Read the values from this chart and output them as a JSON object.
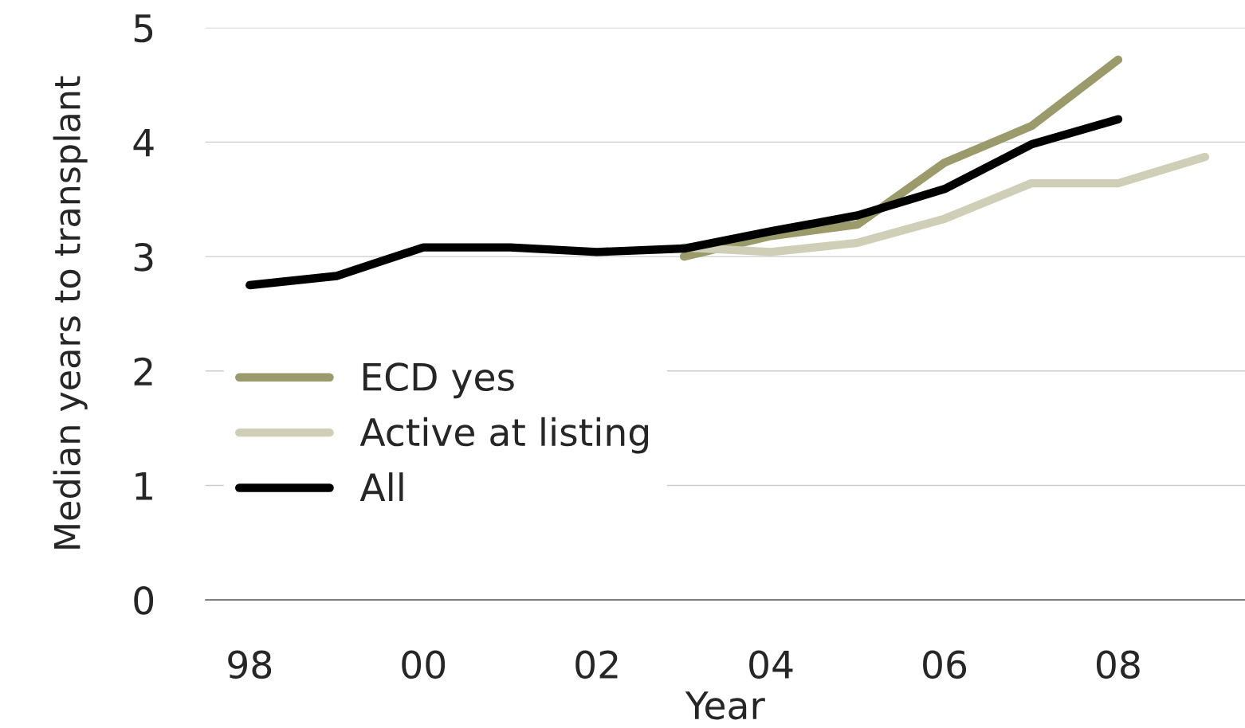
{
  "chart_data": {
    "type": "line",
    "xlabel": "Year",
    "ylabel": "Median years to transplant",
    "x": [
      1998,
      1999,
      2000,
      2001,
      2002,
      2003,
      2004,
      2005,
      2006,
      2007,
      2008,
      2009
    ],
    "series": [
      {
        "name": "ECD yes",
        "color": "#9a9a6a",
        "values": [
          null,
          null,
          null,
          null,
          null,
          3.0,
          3.18,
          3.28,
          3.82,
          4.14,
          4.72,
          null
        ]
      },
      {
        "name": "Active at listing",
        "color": "#cfcfb8",
        "values": [
          null,
          null,
          null,
          null,
          null,
          3.08,
          3.04,
          3.12,
          3.33,
          3.64,
          3.64,
          3.87
        ]
      },
      {
        "name": "All",
        "color": "#000000",
        "values": [
          2.75,
          2.83,
          3.08,
          3.08,
          3.04,
          3.07,
          3.22,
          3.36,
          3.59,
          3.98,
          4.2,
          null
        ]
      }
    ],
    "xlim": [
      1997.49,
      2009.46
    ],
    "ylim": [
      0,
      5
    ],
    "xticks": [
      {
        "value": 1998,
        "label": "98"
      },
      {
        "value": 2000,
        "label": "00"
      },
      {
        "value": 2002,
        "label": "02"
      },
      {
        "value": 2004,
        "label": "04"
      },
      {
        "value": 2006,
        "label": "06"
      },
      {
        "value": 2008,
        "label": "08"
      }
    ],
    "yticks": [
      0,
      1,
      2,
      3,
      4,
      5
    ],
    "grid": "y",
    "legend": "lower left",
    "marker": "none",
    "line_style": "solid"
  }
}
